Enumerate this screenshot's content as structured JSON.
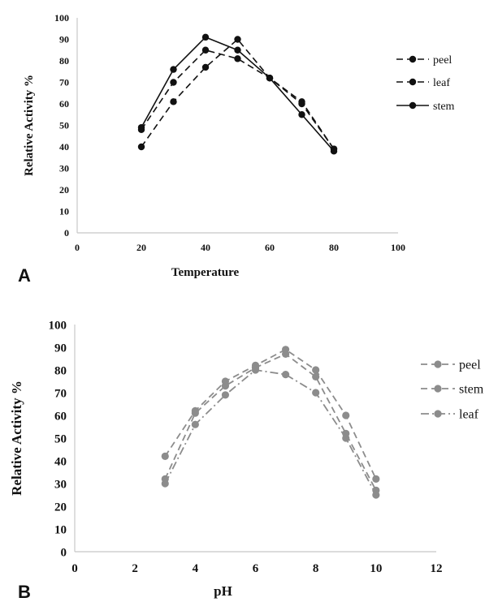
{
  "chart_data": [
    {
      "type": "line",
      "panel_label": "A",
      "xlabel": "Temperature",
      "ylabel": "Relative Activity %",
      "xlim": [
        0,
        100
      ],
      "ylim": [
        0,
        100
      ],
      "xticks": [
        0,
        20,
        40,
        60,
        80,
        100
      ],
      "yticks": [
        0,
        10,
        20,
        30,
        40,
        50,
        60,
        70,
        80,
        90,
        100
      ],
      "grid": false,
      "legend_position": "right",
      "series": [
        {
          "name": "peel",
          "color": "#111111",
          "dash": "dashed",
          "x": [
            20,
            30,
            40,
            50,
            60,
            70,
            80
          ],
          "y": [
            40,
            61,
            77,
            90,
            72,
            61,
            39
          ]
        },
        {
          "name": "leaf",
          "color": "#111111",
          "dash": "dashed",
          "x": [
            20,
            30,
            40,
            50,
            60,
            70,
            80
          ],
          "y": [
            48,
            70,
            85,
            81,
            72,
            60,
            39
          ]
        },
        {
          "name": "stem",
          "color": "#111111",
          "dash": "solid",
          "x": [
            20,
            30,
            40,
            50,
            60,
            70,
            80
          ],
          "y": [
            49,
            76,
            91,
            85,
            72,
            55,
            38
          ]
        }
      ]
    },
    {
      "type": "line",
      "panel_label": "B",
      "xlabel": "pH",
      "ylabel": "Relative Activity %",
      "xlim": [
        0,
        12
      ],
      "ylim": [
        0,
        100
      ],
      "xticks": [
        0,
        2,
        4,
        6,
        8,
        10,
        12
      ],
      "yticks": [
        0,
        10,
        20,
        30,
        40,
        50,
        60,
        70,
        80,
        90,
        100
      ],
      "grid": false,
      "legend_position": "right",
      "series": [
        {
          "name": "peel",
          "color": "#8c8c8c",
          "dash": "dashed",
          "x": [
            3,
            4,
            5,
            6,
            7,
            8,
            9,
            10
          ],
          "y": [
            42,
            62,
            75,
            82,
            89,
            80,
            60,
            32
          ]
        },
        {
          "name": "stem",
          "color": "#8c8c8c",
          "dash": "dashed",
          "x": [
            3,
            4,
            5,
            6,
            7,
            8,
            9,
            10
          ],
          "y": [
            32,
            61,
            73,
            81,
            87,
            77,
            52,
            27
          ]
        },
        {
          "name": "leaf",
          "color": "#8c8c8c",
          "dash": "dashdot",
          "x": [
            3,
            4,
            5,
            6,
            7,
            8,
            9,
            10
          ],
          "y": [
            30,
            56,
            69,
            80,
            78,
            70,
            50,
            25
          ]
        }
      ]
    }
  ]
}
